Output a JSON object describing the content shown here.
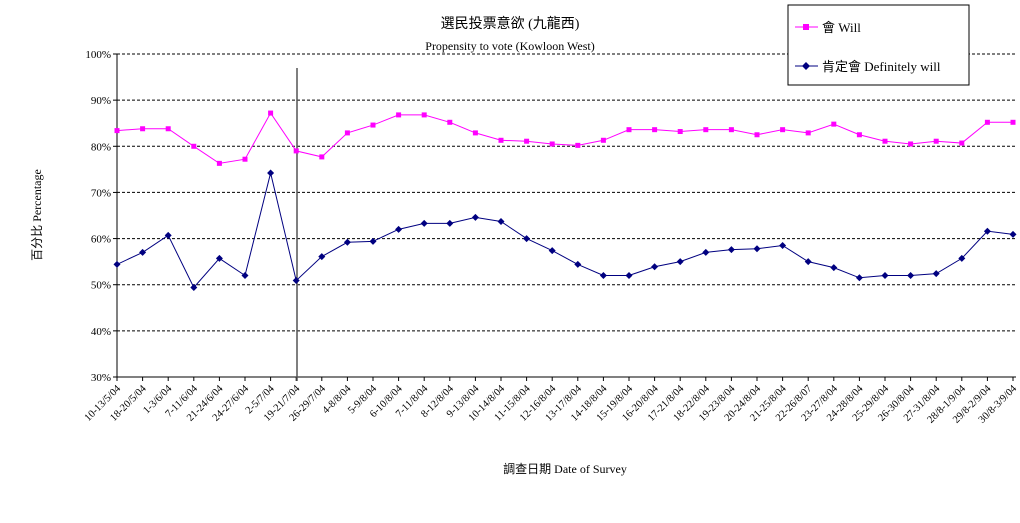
{
  "chart_data": {
    "type": "line",
    "title": "選民投票意欲 (九龍西)",
    "subtitle": "Propensity to vote (Kowloon West)",
    "xlabel": "調查日期 Date of Survey",
    "ylabel": "百分比 Percentage",
    "ylim": [
      30,
      100
    ],
    "yticks": [
      "30%",
      "40%",
      "50%",
      "60%",
      "70%",
      "80%",
      "90%",
      "100%"
    ],
    "grid": "horizontal dashed",
    "legend_position": "top-right",
    "categories": [
      "10-13/5/04",
      "18-20/5/04",
      "1-3/6/04",
      "7-11/6/04",
      "21-24/6/04",
      "24-27/6/04",
      "2-5/7/04",
      "19-21/7/04",
      "26-29/7/04",
      "4-8/8/04",
      "5-9/8/04",
      "6-10/8/04",
      "7-11/8/04",
      "8-12/8/04",
      "9-13/8/04",
      "10-14/8/04",
      "11-15/8/04",
      "12-16/8/04",
      "13-17/8/04",
      "14-18/8/04",
      "15-19/8/04",
      "16-20/8/04",
      "17-21/8/04",
      "18-22/8/04",
      "19-23/8/04",
      "20-24/8/04",
      "21-25/8/04",
      "22-26/8/07",
      "23-27/8/04",
      "24-28/8/04",
      "25-29/8/04",
      "26-30/8/04",
      "27-31/8/04",
      "28/8-1/9/04",
      "29/8-2/9/04",
      "30/8-3/9/04"
    ],
    "series": [
      {
        "name": "會 Will",
        "color": "#ff00ff",
        "marker": "square",
        "values": [
          83.4,
          83.8,
          83.8,
          80.0,
          76.3,
          77.2,
          87.2,
          79.0,
          77.7,
          82.9,
          84.6,
          86.8,
          86.8,
          85.2,
          82.9,
          81.3,
          81.1,
          80.5,
          80.2,
          81.3,
          83.6,
          83.6,
          83.2,
          83.6,
          83.6,
          82.5,
          83.6,
          82.9,
          84.8,
          82.5,
          81.1,
          80.5,
          81.1,
          80.7,
          85.2,
          85.2
        ]
      },
      {
        "name": "肯定會 Definitely will",
        "color": "#000080",
        "marker": "diamond",
        "values": [
          54.4,
          57.0,
          60.7,
          49.4,
          55.7,
          52.0,
          74.2,
          50.9,
          56.1,
          59.2,
          59.4,
          62.0,
          63.3,
          63.3,
          64.6,
          63.7,
          60.0,
          57.4,
          54.4,
          52.0,
          52.0,
          53.9,
          55.0,
          57.0,
          57.6,
          57.8,
          58.5,
          55.0,
          53.7,
          51.5,
          52.0,
          52.0,
          52.4,
          55.7,
          61.6,
          60.9
        ]
      }
    ]
  }
}
